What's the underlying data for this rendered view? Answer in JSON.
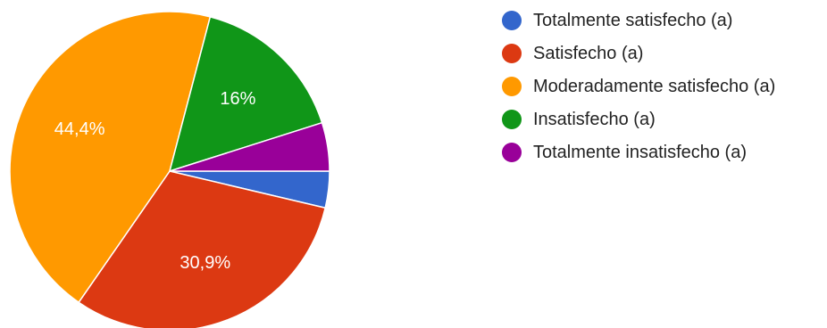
{
  "chart_data": {
    "type": "pie",
    "categories": [
      "Totalmente satisfecho (a)",
      "Satisfecho (a)",
      "Moderadamente satisfecho (a)",
      "Insatisfecho (a)",
      "Totalmente insatisfecho (a)"
    ],
    "values": [
      3.7,
      30.9,
      44.4,
      16.0,
      4.9
    ],
    "colors": [
      "#3366cc",
      "#dc3912",
      "#ff9900",
      "#109618",
      "#990099"
    ],
    "data_labels": [
      "",
      "30,9%",
      "44,4%",
      "16%",
      ""
    ],
    "legend_position": "right",
    "start_angle_deg": 90,
    "direction": "clockwise"
  }
}
